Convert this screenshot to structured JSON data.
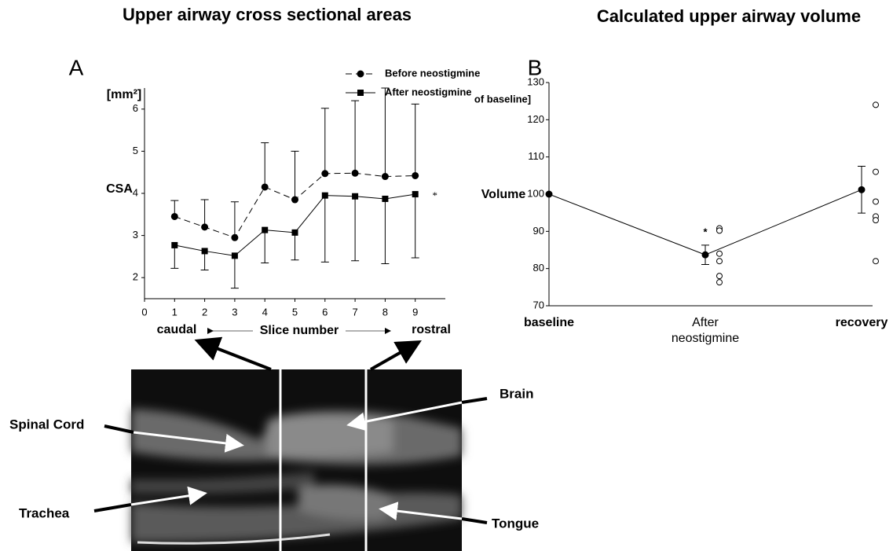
{
  "chart_data": [
    {
      "type": "line",
      "title": "Upper airway cross sectional areas",
      "panel": "A",
      "y_label": "[mm²]",
      "y_name": "CSA",
      "x_label": "Slice number",
      "x_start_label": "caudal",
      "x_end_label": "rostral",
      "annotation": "*",
      "x": [
        1,
        2,
        3,
        4,
        5,
        6,
        7,
        8,
        9
      ],
      "series": [
        {
          "name": "Before neostigmine",
          "color": "#000000",
          "line_style": "dashed",
          "marker": "circle",
          "error_direction": "up",
          "values": [
            3.45,
            3.2,
            2.95,
            4.15,
            3.85,
            4.47,
            4.48,
            4.4,
            4.42
          ],
          "errors": [
            0.38,
            0.65,
            0.85,
            1.05,
            1.15,
            1.55,
            1.72,
            2.1,
            1.7
          ]
        },
        {
          "name": "After neostigmine",
          "color": "#000000",
          "line_style": "solid",
          "marker": "square",
          "error_direction": "down",
          "values": [
            2.77,
            2.63,
            2.52,
            3.13,
            3.07,
            3.95,
            3.93,
            3.87,
            3.98
          ],
          "errors": [
            0.55,
            0.45,
            0.77,
            0.78,
            0.65,
            1.58,
            1.53,
            1.54,
            1.51
          ]
        }
      ],
      "xlim": [
        0,
        10
      ],
      "xticks": [
        0,
        1,
        2,
        3,
        4,
        5,
        6,
        7,
        8,
        9
      ],
      "ylim": [
        1.5,
        6.5
      ],
      "yticks": [
        2,
        3,
        4,
        5,
        6
      ],
      "legend": "upper right"
    },
    {
      "type": "line",
      "title": "Calculated upper airway volume",
      "panel": "B",
      "y_label": "of baseline]",
      "y_name": "Volume",
      "annotation": "*",
      "categories": [
        "baseline",
        "After neostigmine",
        "recovery"
      ],
      "bold_categories": [
        true,
        false,
        true
      ],
      "series": [
        {
          "color": "#000000",
          "values": [
            100,
            83.7,
            101.2
          ],
          "errors": [
            null,
            2.6,
            6.3
          ],
          "individual_values": [
            [],
            [
              90.8,
              90.2,
              84,
              82,
              78,
              76.3
            ],
            [
              124,
              106,
              98,
              94,
              93,
              82
            ]
          ]
        }
      ],
      "ylim": [
        70,
        130
      ],
      "yticks": [
        70,
        80,
        90,
        100,
        110,
        120,
        130
      ]
    }
  ],
  "image_labels": {
    "spinal_cord": "Spinal Cord",
    "brain": "Brain",
    "trachea": "Trachea",
    "tongue": "Tongue"
  }
}
